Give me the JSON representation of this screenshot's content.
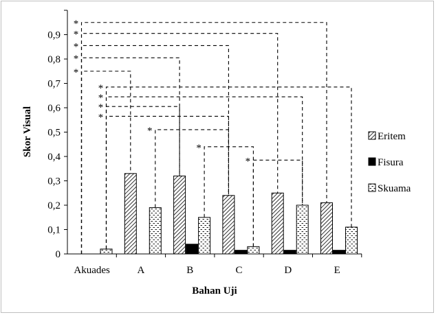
{
  "chart_data": {
    "type": "bar",
    "title": "",
    "xlabel": "Bahan Uji",
    "ylabel": "Skor Visual",
    "ylim": [
      0,
      1.0
    ],
    "y_ticks": [
      "0",
      "0,1",
      "0,2",
      "0,3",
      "0,4",
      "0,5",
      "0,6",
      "0,7",
      "0,8",
      "0,9"
    ],
    "categories": [
      "Akuades",
      "A",
      "B",
      "C",
      "D",
      "E"
    ],
    "series": [
      {
        "name": "Eritem",
        "values": [
          0,
          0.33,
          0.32,
          0.24,
          0.25,
          0.21
        ],
        "pattern": "diagonal-hatch"
      },
      {
        "name": "Fisura",
        "values": [
          0,
          0,
          0.04,
          0.015,
          0.015,
          0.015
        ],
        "pattern": "solid-black"
      },
      {
        "name": "Skuama",
        "values": [
          0.02,
          0.19,
          0.15,
          0.03,
          0.2,
          0.11
        ],
        "pattern": "dashed-dots"
      }
    ],
    "legend_position": "right",
    "significance_marker": "*",
    "significance_brackets": [
      {
        "from": "Akuades:Eritem",
        "to": "E:Eritem",
        "level": 0.95
      },
      {
        "from": "Akuades:Eritem",
        "to": "D:Eritem",
        "level": 0.905
      },
      {
        "from": "Akuades:Eritem",
        "to": "C:Eritem",
        "level": 0.855
      },
      {
        "from": "Akuades:Eritem",
        "to": "B:Eritem",
        "level": 0.805
      },
      {
        "from": "Akuades:Eritem",
        "to": "A:Eritem",
        "level": 0.75
      },
      {
        "from": "Akuades:Skuama",
        "to": "E:Skuama",
        "level": 0.685
      },
      {
        "from": "Akuades:Skuama",
        "to": "D:Skuama",
        "level": 0.645
      },
      {
        "from": "Akuades:Skuama",
        "to": "B:Eritem",
        "level": 0.605
      },
      {
        "from": "Akuades:Skuama",
        "to": "C:Eritem",
        "level": 0.565
      },
      {
        "from": "A:Skuama",
        "to": "C:Eritem",
        "level": 0.51
      },
      {
        "from": "B:Skuama",
        "to": "C:Skuama",
        "level": 0.44
      },
      {
        "from": "C:Skuama",
        "to": "D:Skuama",
        "level": 0.385
      }
    ],
    "grid": false
  }
}
